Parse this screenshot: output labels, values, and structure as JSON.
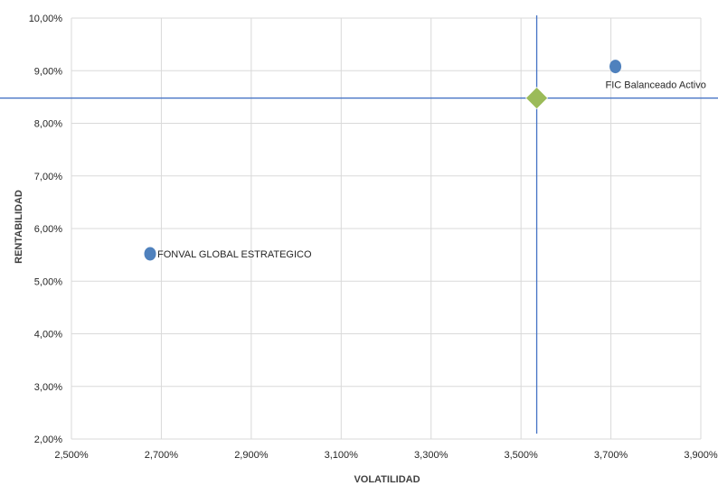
{
  "chart_data": {
    "type": "scatter",
    "title": "",
    "xlabel": "VOLATILIDAD",
    "ylabel": "RENTABILIDAD",
    "xlim": [
      2.5,
      3.9
    ],
    "ylim": [
      2.0,
      10.0
    ],
    "x_ticks": [
      2.5,
      2.7,
      2.9,
      3.1,
      3.3,
      3.5,
      3.7,
      3.9
    ],
    "y_ticks": [
      2,
      3,
      4,
      5,
      6,
      7,
      8,
      9,
      10
    ],
    "x_tick_labels": [
      "2,500%",
      "2,700%",
      "2,900%",
      "3,100%",
      "3,300%",
      "3,500%",
      "3,700%",
      "3,900%"
    ],
    "y_tick_labels": [
      "2,00%",
      "3,00%",
      "4,00%",
      "5,00%",
      "6,00%",
      "7,00%",
      "8,00%",
      "9,00%",
      "10,00%"
    ],
    "grid": true,
    "points": [
      {
        "label": "FIC Balanceado Activo",
        "x": 3.71,
        "y": 9.08,
        "marker": "circle",
        "color": "#4f81bd"
      },
      {
        "label": "FONVAL GLOBAL ESTRATEGICO",
        "x": 2.675,
        "y": 5.52,
        "marker": "circle",
        "color": "#4f81bd"
      },
      {
        "label": "",
        "x": 3.535,
        "y": 8.48,
        "marker": "diamond",
        "color": "#9bbb59"
      }
    ],
    "reference_lines": {
      "x": 3.535,
      "y": 8.48,
      "color": "#4472c4"
    }
  }
}
